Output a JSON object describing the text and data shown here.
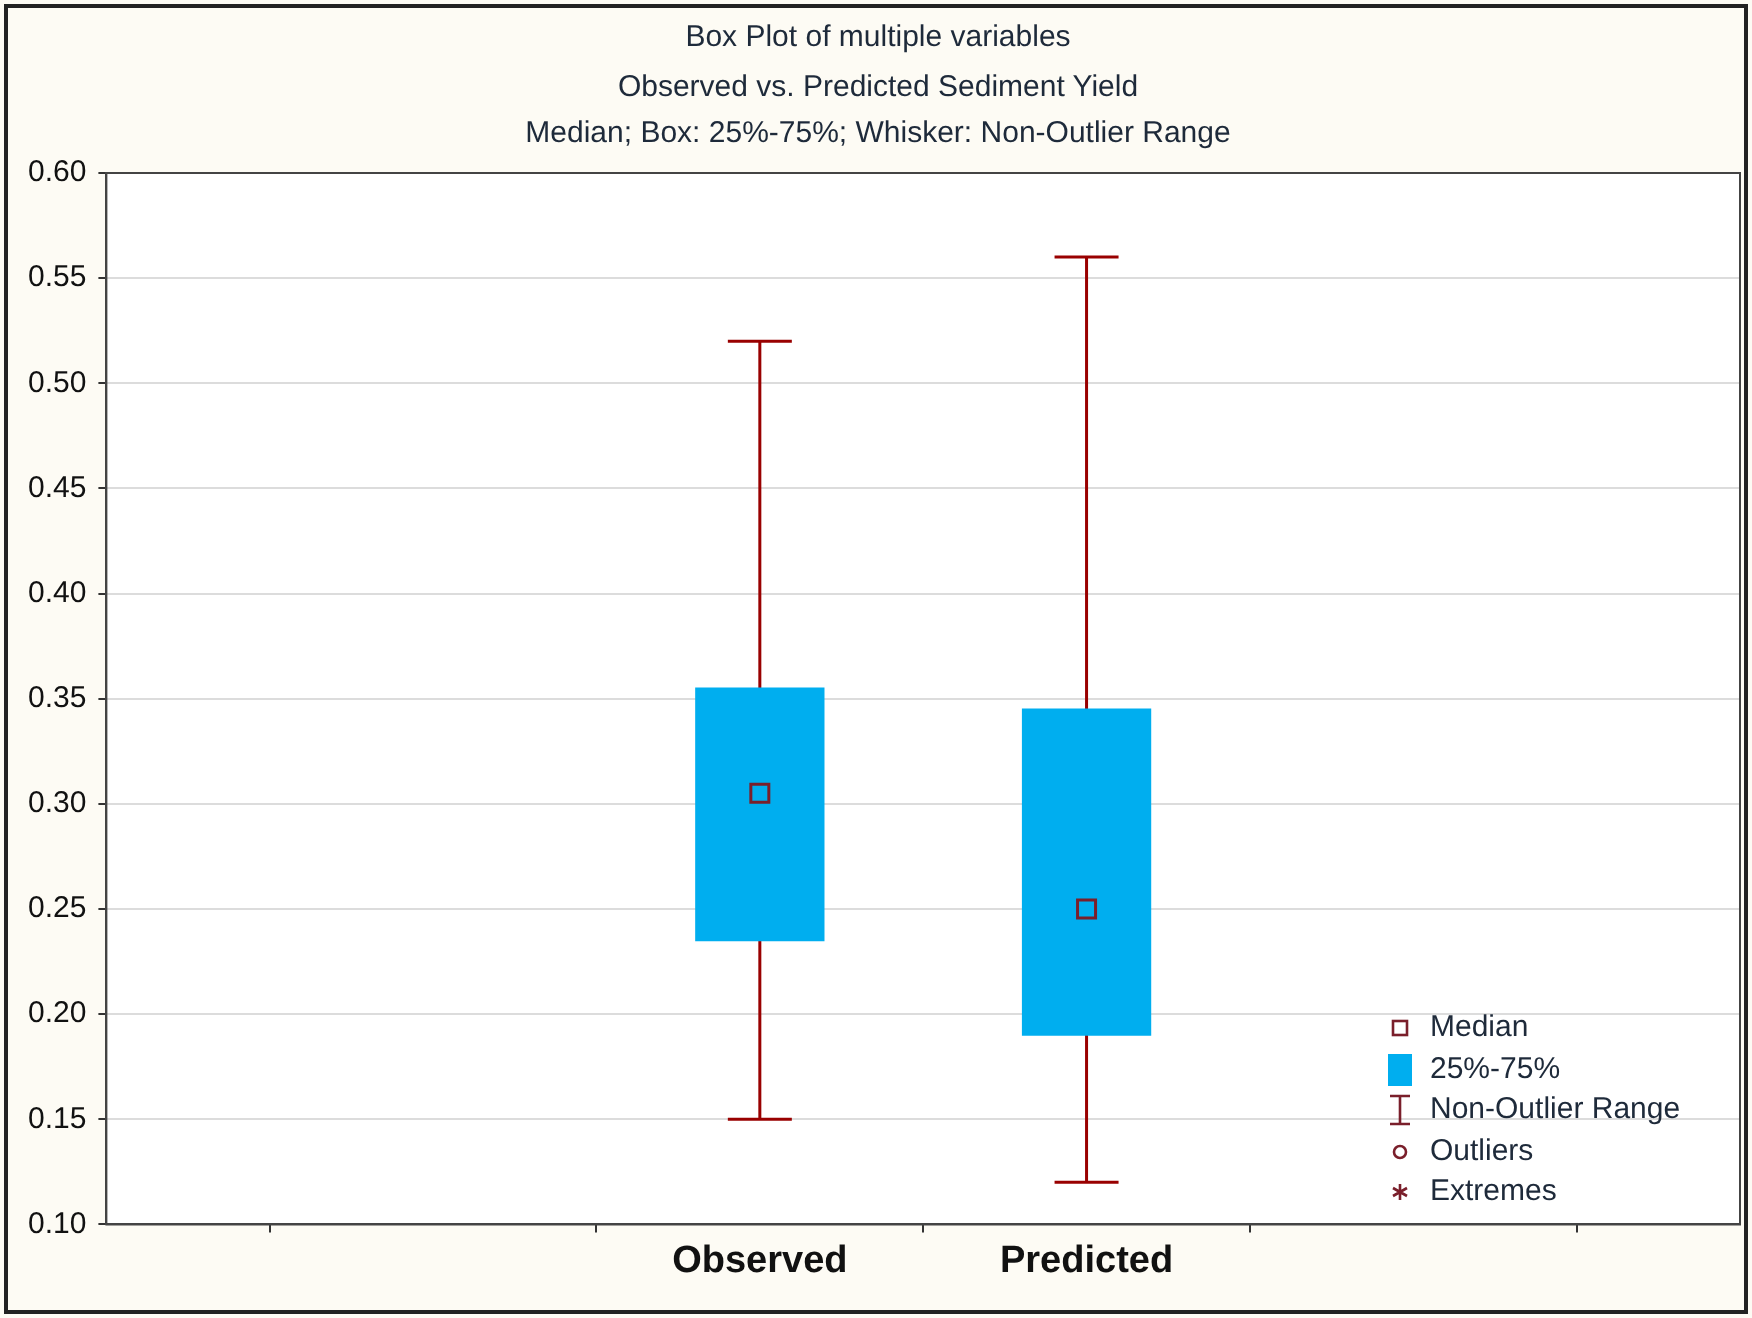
{
  "chart_data": {
    "type": "box",
    "title": "Box Plot of multiple variables",
    "subtitle": "Observed vs. Predicted Sediment Yield\nMedian; Box: 25%-75%; Whisker: Non-Outlier Range",
    "categories": [
      "Observed",
      "Predicted"
    ],
    "series": [
      {
        "name": "25%-75%",
        "color": "#00aeef",
        "boxes": [
          {
            "low": 0.15,
            "q1": 0.235,
            "median": 0.305,
            "q3": 0.355,
            "high": 0.52
          },
          {
            "low": 0.12,
            "q1": 0.19,
            "median": 0.25,
            "q3": 0.345,
            "high": 0.56
          }
        ]
      }
    ],
    "ylim": [
      0.1,
      0.6
    ],
    "yticks": [
      {
        "value": 0.1,
        "label": "0.10"
      },
      {
        "value": 0.15,
        "label": "0.15"
      },
      {
        "value": 0.2,
        "label": "0.20"
      },
      {
        "value": 0.25,
        "label": "0.25"
      },
      {
        "value": 0.3,
        "label": "0.30"
      },
      {
        "value": 0.35,
        "label": "0.35"
      },
      {
        "value": 0.4,
        "label": "0.40"
      },
      {
        "value": 0.45,
        "label": "0.45"
      },
      {
        "value": 0.5,
        "label": "0.50"
      },
      {
        "value": 0.55,
        "label": "0.55"
      },
      {
        "value": 0.6,
        "label": "0.60"
      }
    ],
    "grid": "y",
    "legend": "bottom right",
    "marker": "square",
    "annotations": [
      "Median",
      "Non-Outlier Range",
      "Outliers",
      "Extremes"
    ]
  }
}
